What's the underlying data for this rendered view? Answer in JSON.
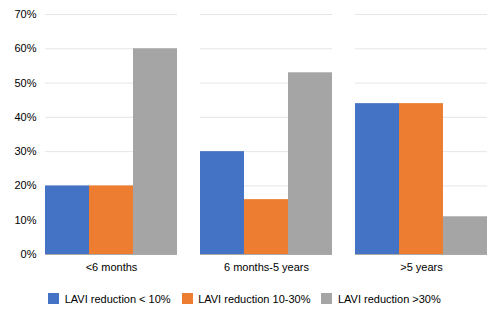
{
  "chart_data": {
    "type": "bar",
    "categories": [
      "<6 months",
      "6 months-5 years",
      ">5 years"
    ],
    "series": [
      {
        "name": "LAVI reduction < 10%",
        "color": "#4472C4",
        "values": [
          20,
          30,
          44
        ]
      },
      {
        "name": "LAVI reduction 10-30%",
        "color": "#ED7D31",
        "values": [
          20,
          16,
          44
        ]
      },
      {
        "name": "LAVI reduction >30%",
        "color": "#A5A5A5",
        "values": [
          60,
          53,
          11
        ]
      }
    ],
    "ylim": [
      0,
      70
    ],
    "yticks": [
      {
        "value": 0,
        "label": "0%"
      },
      {
        "value": 10,
        "label": "10%"
      },
      {
        "value": 20,
        "label": "20%"
      },
      {
        "value": 30,
        "label": "30%"
      },
      {
        "value": 40,
        "label": "40%"
      },
      {
        "value": 50,
        "label": "50%"
      },
      {
        "value": 60,
        "label": "60%"
      },
      {
        "value": 70,
        "label": "70%"
      }
    ],
    "grid": true,
    "legend": "bottom"
  }
}
